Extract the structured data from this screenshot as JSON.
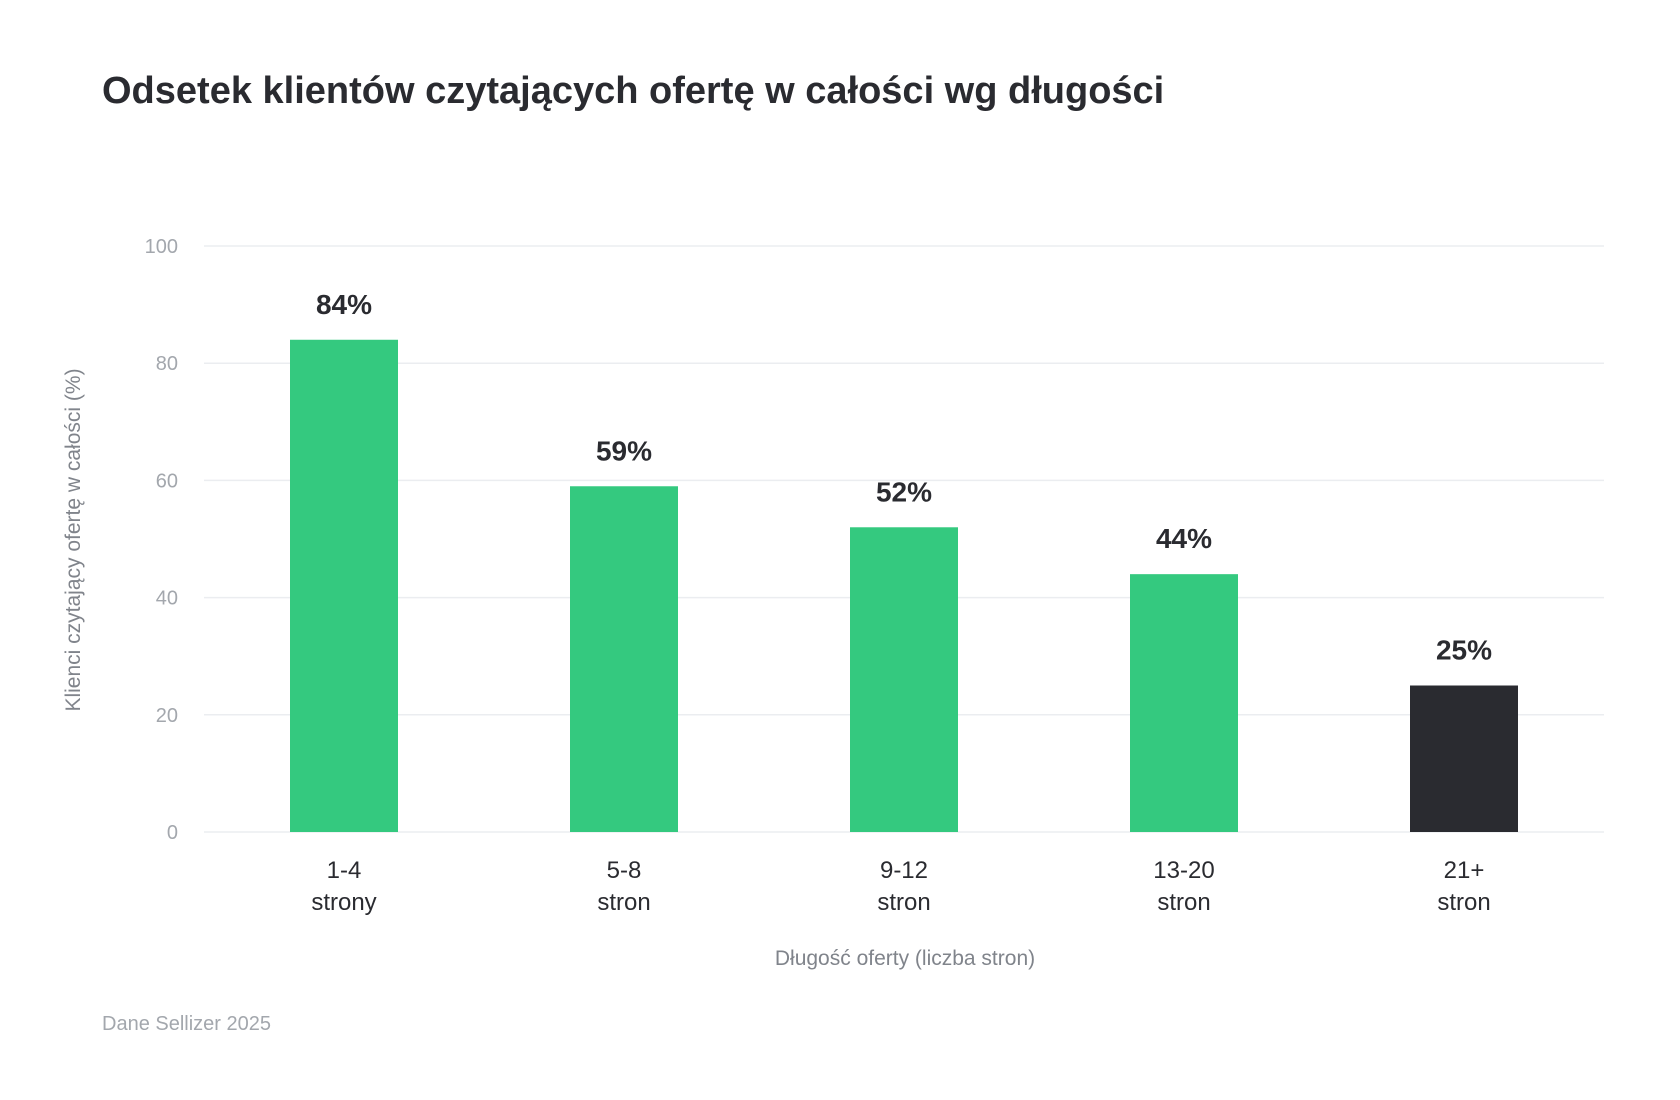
{
  "chart_data": {
    "type": "bar",
    "title": "Odsetek klientów czytających ofertę w całości wg długości",
    "xlabel": "Długość oferty (liczba stron)",
    "ylabel": "Klienci czytający ofertę w całości (%)",
    "categories": [
      [
        "1-4",
        "strony"
      ],
      [
        "5-8",
        "stron"
      ],
      [
        "9-12",
        "stron"
      ],
      [
        "13-20",
        "stron"
      ],
      [
        "21+",
        "stron"
      ]
    ],
    "values": [
      84,
      59,
      52,
      44,
      25
    ],
    "value_labels": [
      "84%",
      "59%",
      "52%",
      "44%",
      "25%"
    ],
    "ylim": [
      0,
      100
    ],
    "yticks": [
      0,
      20,
      40,
      60,
      80,
      100
    ],
    "grid": true,
    "legend": "none",
    "colors": [
      "#34c97f",
      "#34c97f",
      "#34c97f",
      "#34c97f",
      "#2a2b30"
    ],
    "grid_color": "#ebedf0"
  },
  "footer": {
    "source": "Dane Sellizer 2025"
  }
}
